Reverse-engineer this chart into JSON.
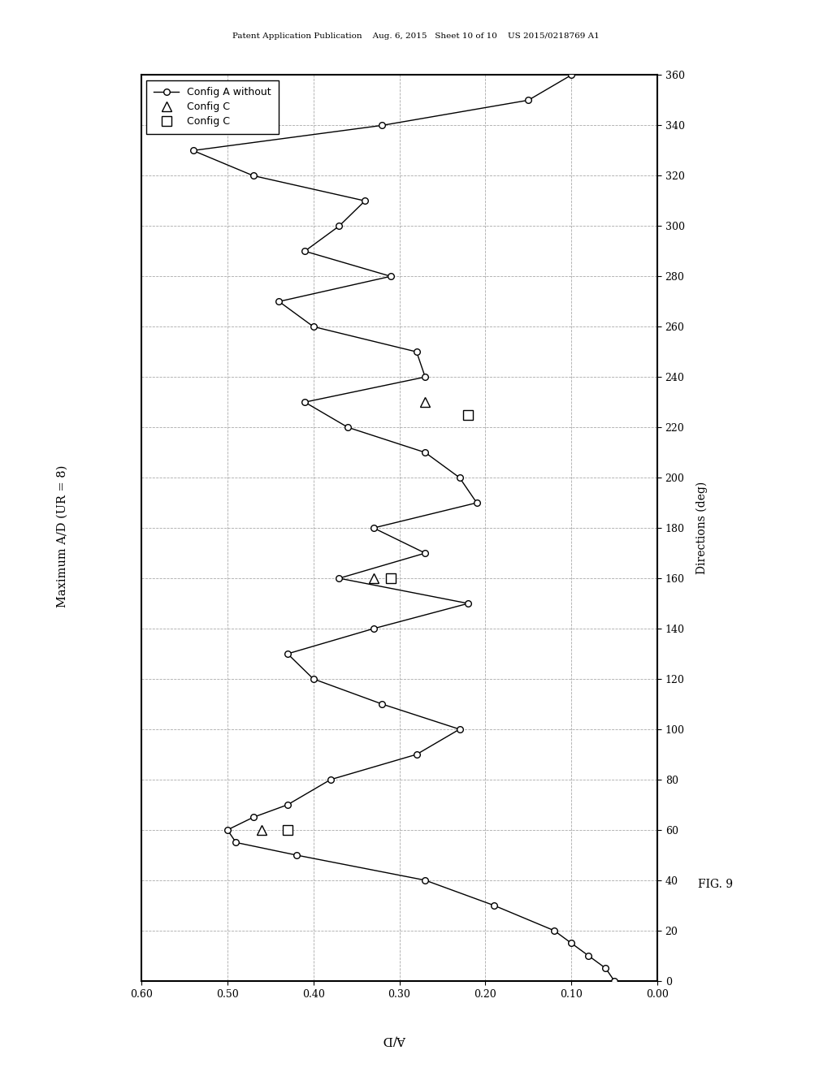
{
  "title": "Maximum A/D (UR = 8)",
  "xlabel": "A/D",
  "ylabel": "Directions (deg)",
  "fig_label": "FIG. 9",
  "header_text": "Patent Application Publication    Aug. 6, 2015   Sheet 10 of 10    US 2015/0218769 A1",
  "xlim": [
    0.6,
    0.0
  ],
  "ylim": [
    0,
    360
  ],
  "xticks": [
    0.6,
    0.5,
    0.4,
    0.3,
    0.2,
    0.1,
    0.0
  ],
  "yticks": [
    0,
    20,
    40,
    60,
    80,
    100,
    120,
    140,
    160,
    180,
    200,
    220,
    240,
    260,
    280,
    300,
    320,
    340,
    360
  ],
  "config_a_dirs": [
    0,
    5,
    10,
    15,
    20,
    30,
    40,
    50,
    55,
    60,
    65,
    70,
    80,
    90,
    100,
    110,
    120,
    130,
    140,
    150,
    160,
    170,
    180,
    190,
    200,
    210,
    220,
    230,
    240,
    250,
    260,
    270,
    280,
    290,
    300,
    310,
    320,
    330,
    340,
    350,
    360
  ],
  "config_a_vals": [
    0.05,
    0.06,
    0.08,
    0.1,
    0.12,
    0.19,
    0.27,
    0.42,
    0.49,
    0.5,
    0.47,
    0.43,
    0.38,
    0.28,
    0.23,
    0.32,
    0.4,
    0.43,
    0.33,
    0.22,
    0.37,
    0.27,
    0.33,
    0.21,
    0.23,
    0.27,
    0.36,
    0.41,
    0.27,
    0.28,
    0.4,
    0.44,
    0.31,
    0.41,
    0.37,
    0.34,
    0.47,
    0.54,
    0.32,
    0.15,
    0.1
  ],
  "config_b_tri_dirs": [
    60,
    160,
    230
  ],
  "config_b_tri_vals": [
    0.46,
    0.33,
    0.27
  ],
  "config_c_sq_dirs": [
    60,
    160,
    225
  ],
  "config_c_sq_vals": [
    0.43,
    0.31,
    0.22
  ],
  "legend_labels": [
    "Config A without",
    "Config C",
    "Config C"
  ],
  "background_color": "#ffffff",
  "line_color": "#000000"
}
